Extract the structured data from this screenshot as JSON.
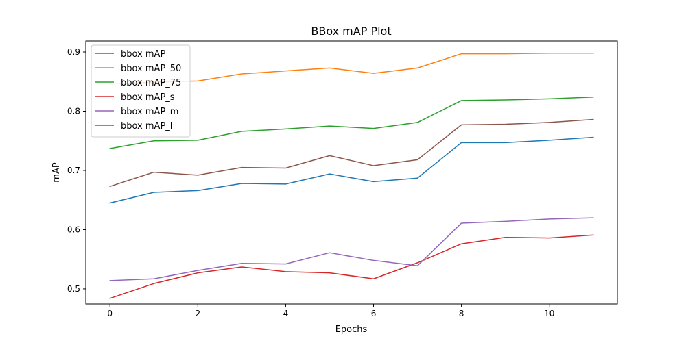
{
  "chart_data": {
    "type": "line",
    "title": "BBox mAP Plot",
    "xlabel": "Epochs",
    "ylabel": "mAP",
    "xlim": [
      -0.55,
      11.55
    ],
    "ylim": [
      0.4745,
      0.9185
    ],
    "xticks": [
      0,
      2,
      4,
      6,
      8,
      10
    ],
    "xtick_labels": [
      "0",
      "2",
      "4",
      "6",
      "8",
      "10"
    ],
    "yticks": [
      0.5,
      0.6,
      0.7,
      0.8,
      0.9
    ],
    "ytick_labels": [
      "0.5",
      "0.6",
      "0.7",
      "0.8",
      "0.9"
    ],
    "grid": false,
    "legend_position": "top-left",
    "x": [
      0,
      1,
      2,
      3,
      4,
      5,
      6,
      7,
      8,
      9,
      10,
      11
    ],
    "series": [
      {
        "name": "bbox mAP",
        "color": "#1f77b4",
        "values": [
          0.645,
          0.663,
          0.666,
          0.678,
          0.677,
          0.694,
          0.681,
          0.687,
          0.747,
          0.747,
          0.751,
          0.756
        ]
      },
      {
        "name": "bbox mAP_50",
        "color": "#ff7f0e",
        "values": [
          0.846,
          0.849,
          0.851,
          0.863,
          0.868,
          0.873,
          0.864,
          0.873,
          0.897,
          0.897,
          0.898,
          0.898
        ]
      },
      {
        "name": "bbox mAP_75",
        "color": "#2ca02c",
        "values": [
          0.737,
          0.75,
          0.751,
          0.766,
          0.77,
          0.775,
          0.771,
          0.781,
          0.818,
          0.819,
          0.821,
          0.824
        ]
      },
      {
        "name": "bbox mAP_s",
        "color": "#d62728",
        "values": [
          0.484,
          0.509,
          0.527,
          0.537,
          0.529,
          0.527,
          0.517,
          0.544,
          0.576,
          0.587,
          0.586,
          0.591
        ]
      },
      {
        "name": "bbox mAP_m",
        "color": "#9467bd",
        "values": [
          0.514,
          0.517,
          0.531,
          0.543,
          0.542,
          0.561,
          0.548,
          0.539,
          0.611,
          0.614,
          0.618,
          0.62
        ]
      },
      {
        "name": "bbox mAP_l",
        "color": "#8c564b",
        "values": [
          0.673,
          0.697,
          0.692,
          0.705,
          0.704,
          0.725,
          0.708,
          0.718,
          0.777,
          0.778,
          0.781,
          0.786
        ]
      }
    ]
  }
}
